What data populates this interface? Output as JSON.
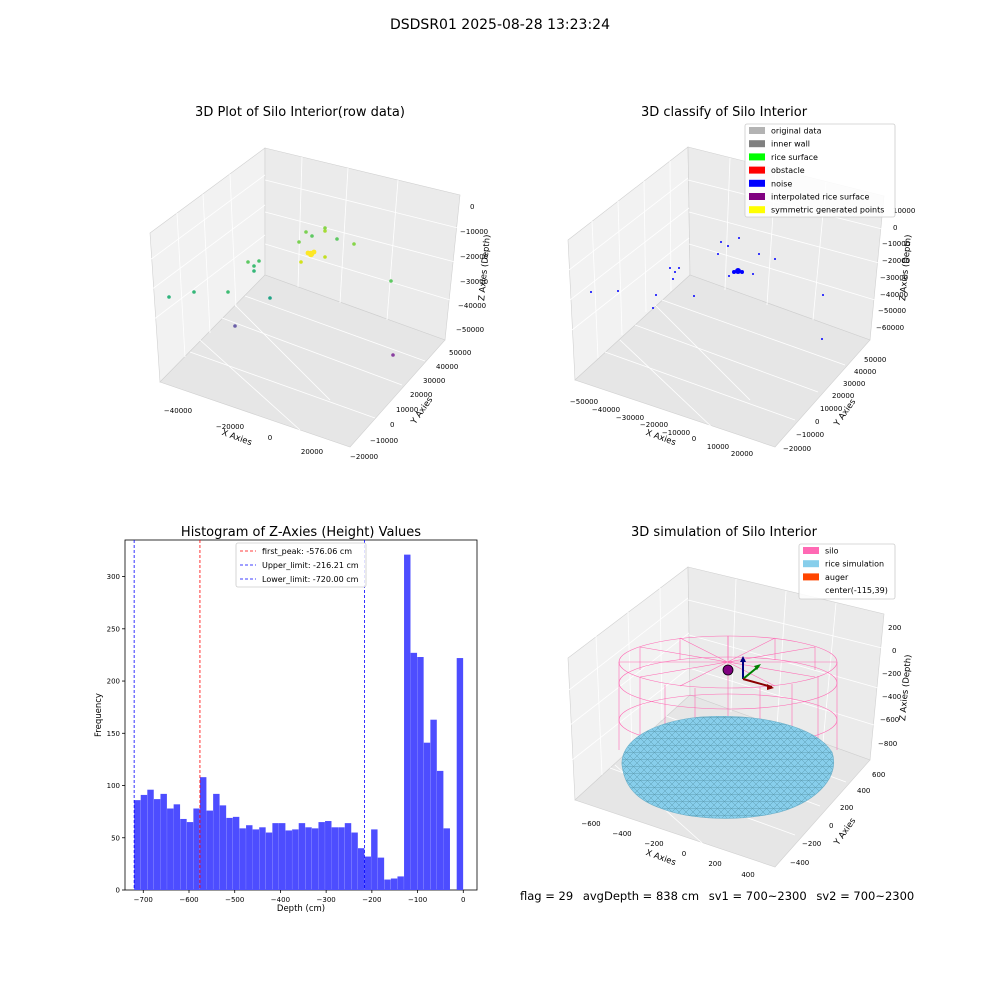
{
  "suptitle": "DSDSR01 2025-08-28 13:23:24",
  "footer": {
    "flag": "flag = 29",
    "avg_depth": "avgDepth = 838 cm",
    "sv1": "sv1 = 700~2300",
    "sv2": "sv2 = 700~2300"
  },
  "chart_data": [
    {
      "type": "scatter",
      "title": "3D Plot of Silo Interior(row data)",
      "xlabel": "X Axies",
      "ylabel": "Y Axies",
      "zlabel": "Z Axies (Depth)",
      "x_ticks": [
        -40000,
        -20000,
        0,
        20000
      ],
      "y_ticks": [
        -20000,
        -10000,
        0,
        10000,
        20000,
        30000,
        40000,
        50000
      ],
      "z_ticks": [
        0,
        -10000,
        -20000,
        -30000,
        -40000,
        -50000
      ],
      "colormap": "viridis (by depth)",
      "points_description": "sparse scatter of about 25 points, dense yellow cluster near the center"
    },
    {
      "type": "scatter",
      "title": "3D classify of Silo Interior",
      "xlabel": "X Axies",
      "ylabel": "Y Axies",
      "zlabel": "Z Axies (Depth)",
      "x_ticks": [
        -50000,
        -40000,
        -30000,
        -20000,
        -10000,
        0,
        10000,
        20000
      ],
      "y_ticks": [
        -20000,
        -10000,
        0,
        10000,
        20000,
        30000,
        40000,
        50000
      ],
      "z_ticks": [
        10000,
        0,
        -10000,
        -20000,
        -30000,
        -40000,
        -50000,
        -60000
      ],
      "legend_position": "top-right",
      "legend": [
        {
          "label": "original data",
          "color": "#b3b3b3"
        },
        {
          "label": "inner wall",
          "color": "#808080"
        },
        {
          "label": "rice surface",
          "color": "#00ff00"
        },
        {
          "label": "obstacle",
          "color": "#ff0000"
        },
        {
          "label": "noise",
          "color": "#0000ff"
        },
        {
          "label": "interpolated rice surface",
          "color": "#800080"
        },
        {
          "label": "symmetric generated points",
          "color": "#ffff00"
        }
      ]
    },
    {
      "type": "bar",
      "title": "Histogram of Z-Axies (Height) Values",
      "xlabel": "Depth (cm)",
      "ylabel": "Frequency",
      "xlim": [
        -740,
        30
      ],
      "ylim": [
        0,
        335
      ],
      "x_ticks": [
        -700,
        -600,
        -500,
        -400,
        -300,
        -200,
        -100,
        0
      ],
      "y_ticks": [
        0,
        50,
        100,
        150,
        200,
        250,
        300
      ],
      "bar_color": "#4d4dff",
      "bin_start": -720,
      "bin_width": 14.4,
      "values": [
        86,
        91,
        96,
        87,
        92,
        78,
        82,
        68,
        65,
        78,
        108,
        76,
        92,
        81,
        69,
        70,
        59,
        62,
        58,
        60,
        55,
        64,
        64,
        57,
        58,
        64,
        60,
        59,
        65,
        66,
        60,
        60,
        64,
        55,
        40,
        32,
        58,
        31,
        10,
        11,
        13,
        321,
        227,
        223,
        141,
        163,
        114,
        59,
        0,
        222
      ],
      "vlines": [
        {
          "x": -576.06,
          "label": "first_peak: -576.06 cm",
          "color": "#ff0000"
        },
        {
          "x": -216.21,
          "label": "Upper_limit: -216.21 cm",
          "color": "#0000ff"
        },
        {
          "x": -720.0,
          "label": "Lower_limit: -720.00 cm",
          "color": "#0000ff"
        }
      ],
      "legend_position": "top-center"
    },
    {
      "type": "surface",
      "title": "3D simulation of Silo Interior",
      "xlabel": "X Axies",
      "ylabel": "Y Axies",
      "zlabel": "Z Axies (Depth)",
      "x_ticks": [
        -600,
        -400,
        -200,
        0,
        200,
        400
      ],
      "y_ticks": [
        -400,
        -200,
        0,
        200,
        400,
        600
      ],
      "z_ticks": [
        200,
        0,
        -200,
        -400,
        -600,
        -800
      ],
      "legend_position": "top-right",
      "legend": [
        {
          "label": "silo",
          "color": "#ff69b4"
        },
        {
          "label": "rice simulation",
          "color": "#87ceeb"
        },
        {
          "label": "auger",
          "color": "#ff4500"
        },
        {
          "label": "center(-115,39)",
          "color": ""
        }
      ]
    }
  ]
}
